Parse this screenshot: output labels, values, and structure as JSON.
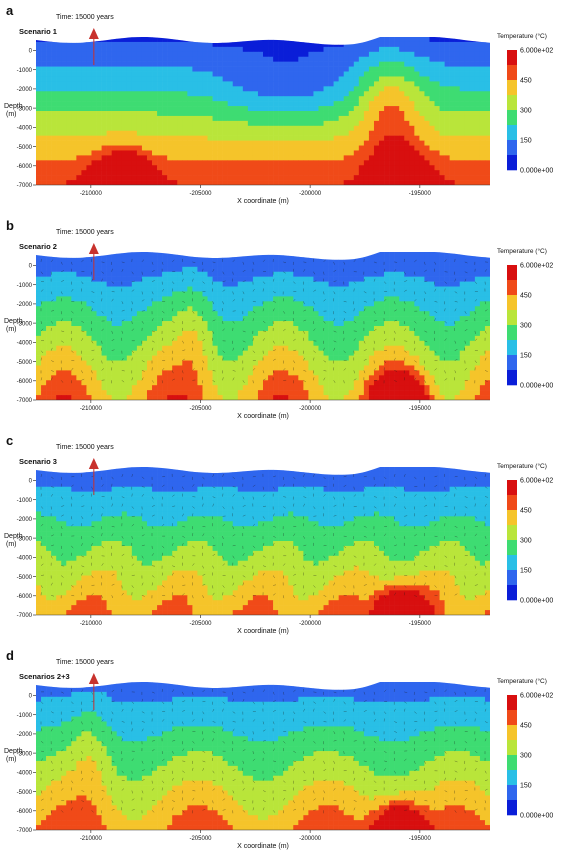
{
  "chart_data": [
    {
      "type": "heatmap",
      "panel_letter": "a",
      "scenario": "Scenario 1",
      "time_label": "Time: 15000 years",
      "ylabel": "Depth\n(m)",
      "xlabel": "X coordinate (m)",
      "x_ticks": [
        "-210000",
        "-205000",
        "-200000",
        "-195000"
      ],
      "x_tick_values": [
        -210000,
        -205000,
        -200000,
        -195000
      ],
      "y_ticks": [
        "0",
        "-1000",
        "-2000",
        "-3000",
        "-4000",
        "-5000",
        "-6000",
        "-7000"
      ],
      "y_tick_values": [
        0,
        -1000,
        -2000,
        -3000,
        -4000,
        -5000,
        -6000,
        -7000
      ],
      "xlim": [
        -212500,
        -191800
      ],
      "ylim": [
        -7000,
        700
      ],
      "colorbar": {
        "title": "Temperature (°C)",
        "tick_labels": [
          "6.000e+02",
          "450",
          "300",
          "150",
          "0.000e+00"
        ],
        "tick_values": [
          600,
          450,
          300,
          150,
          0
        ],
        "range": [
          0,
          600
        ]
      },
      "hot_zones": [
        {
          "x": -209500,
          "depth": -7000,
          "value": 600
        },
        {
          "x": -195500,
          "depth": -7000,
          "value": 600
        }
      ],
      "has_flow_vectors": false
    },
    {
      "type": "heatmap",
      "panel_letter": "b",
      "scenario": "Scenario 2",
      "time_label": "Time: 15000 years",
      "ylabel": "Depth\n(m)",
      "xlabel": "X coordinate (m)",
      "x_ticks": [
        "-210000",
        "-205000",
        "-200000",
        "-195000"
      ],
      "x_tick_values": [
        -210000,
        -205000,
        -200000,
        -195000
      ],
      "y_ticks": [
        "0",
        "-1000",
        "-2000",
        "-3000",
        "-4000",
        "-5000",
        "-6000",
        "-7000"
      ],
      "y_tick_values": [
        0,
        -1000,
        -2000,
        -3000,
        -4000,
        -5000,
        -6000,
        -7000
      ],
      "xlim": [
        -212500,
        -191800
      ],
      "ylim": [
        -7000,
        700
      ],
      "colorbar": {
        "title": "Temperature (°C)",
        "tick_labels": [
          "6.000e+02",
          "450",
          "300",
          "150",
          "0.000e+00"
        ],
        "tick_values": [
          600,
          450,
          300,
          150,
          0
        ],
        "range": [
          0,
          600
        ]
      },
      "hot_zones": [
        {
          "x": -195500,
          "depth": -7000,
          "value": 600
        }
      ],
      "has_flow_vectors": true
    },
    {
      "type": "heatmap",
      "panel_letter": "c",
      "scenario": "Scenario 3",
      "time_label": "Time: 15000 years",
      "ylabel": "Depth\n(m)",
      "xlabel": "X coordinate (m)",
      "x_ticks": [
        "-210000",
        "-205000",
        "-200000",
        "-195000"
      ],
      "x_tick_values": [
        -210000,
        -205000,
        -200000,
        -195000
      ],
      "y_ticks": [
        "0",
        "-1000",
        "-2000",
        "-3000",
        "-4000",
        "-5000",
        "-6000",
        "-7000"
      ],
      "y_tick_values": [
        0,
        -1000,
        -2000,
        -3000,
        -4000,
        -5000,
        -6000,
        -7000
      ],
      "xlim": [
        -212500,
        -191800
      ],
      "ylim": [
        -7000,
        700
      ],
      "colorbar": {
        "title": "Temperature (°C)",
        "tick_labels": [
          "6.000e+02",
          "450",
          "300",
          "150",
          "0.000e+00"
        ],
        "tick_values": [
          600,
          450,
          300,
          150,
          0
        ],
        "range": [
          0,
          600
        ]
      },
      "hot_zones": [
        {
          "x": -195500,
          "depth": -7000,
          "value": 600
        }
      ],
      "has_flow_vectors": true
    },
    {
      "type": "heatmap",
      "panel_letter": "d",
      "scenario": "Scenarios 2+3",
      "time_label": "Time: 15000 years",
      "ylabel": "Depth\n(m)",
      "xlabel": "X coordinate (m)",
      "x_ticks": [
        "-210000",
        "-205000",
        "-200000",
        "-195000"
      ],
      "x_tick_values": [
        -210000,
        -205000,
        -200000,
        -195000
      ],
      "y_ticks": [
        "0",
        "-1000",
        "-2000",
        "-3000",
        "-4000",
        "-5000",
        "-6000",
        "-7000"
      ],
      "y_tick_values": [
        0,
        -1000,
        -2000,
        -3000,
        -4000,
        -5000,
        -6000,
        -7000
      ],
      "xlim": [
        -212500,
        -191800
      ],
      "ylim": [
        -7000,
        700
      ],
      "colorbar": {
        "title": "Temperature (°C)",
        "tick_labels": [
          "6.000e+02",
          "450",
          "300",
          "150",
          "0.000e+00"
        ],
        "tick_values": [
          600,
          450,
          300,
          150,
          0
        ],
        "range": [
          0,
          600
        ]
      },
      "hot_zones": [
        {
          "x": -195500,
          "depth": -7000,
          "value": 600
        }
      ],
      "has_flow_vectors": true
    }
  ],
  "colors": {
    "scale": [
      "#0a1ed8",
      "#2f66ee",
      "#29bfe6",
      "#3edc72",
      "#b9e53a",
      "#f5c42a",
      "#f04a18",
      "#d80f0f"
    ],
    "marker": "#c8322d"
  }
}
